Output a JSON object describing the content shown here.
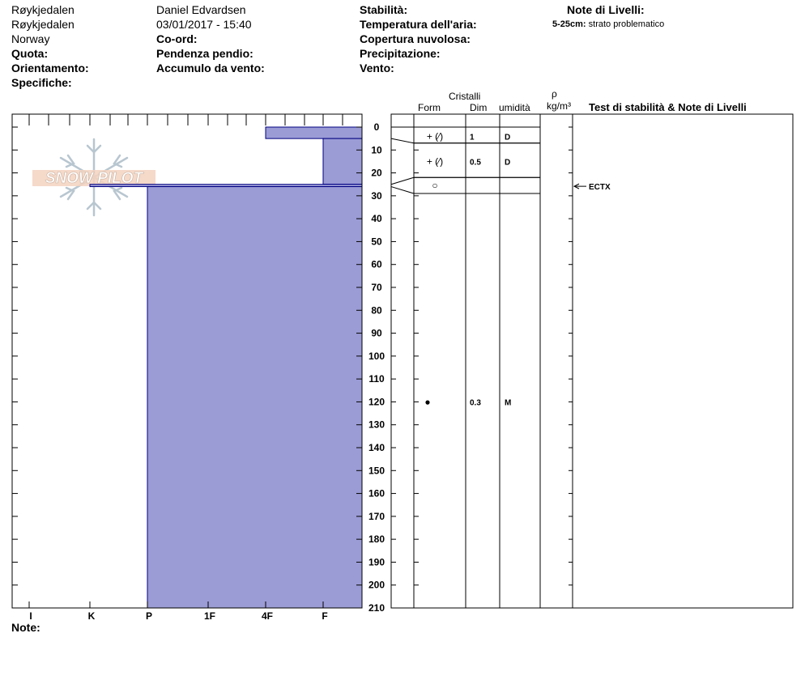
{
  "header": {
    "location1": "Røykjedalen",
    "location2": "Røykjedalen",
    "country": "Norway",
    "quota_label": "Quota:",
    "orientation_label": "Orientamento:",
    "specifics_label": "Specifiche:",
    "observer": "Daniel Edvardsen",
    "datetime": "03/01/2017 - 15:40",
    "coord_label": "Co-ord:",
    "slope_label": "Pendenza pendio:",
    "wind_loading_label": "Accumulo da vento:",
    "stability_label": "Stabilità:",
    "air_temp_label": "Temperatura dell'aria:",
    "cloud_label": "Copertura nuvolosa:",
    "precip_label": "Precipitazione:",
    "wind_label": "Vento:",
    "layer_notes_label": "Note di Livelli:",
    "layer_note_range": "5-25cm:",
    "layer_note_text": "strato problematico"
  },
  "logo_text": "SNOW PILOT",
  "notes_label": "Note:",
  "columns": {
    "crystals": "Cristalli",
    "form": "Form",
    "size": "Dim",
    "moisture": "umidità",
    "rho": "ρ",
    "density_unit": "kg/m³",
    "stability_tests": "Test di stabilità & Note di Livelli"
  },
  "colors": {
    "profile_fill": "#9b9bd6",
    "profile_edge": "#000080"
  },
  "chart_data": {
    "type": "area",
    "title": "",
    "ylabel": "",
    "xlabel": "",
    "depth_axis": {
      "min": 0,
      "max": 210,
      "step": 10,
      "direction": "top-down",
      "unit": "cm"
    },
    "hardness_categories": [
      "I",
      "K",
      "P",
      "1F",
      "4F",
      "F"
    ],
    "hardness_profile": [
      {
        "top": 0,
        "bottom": 5,
        "hardness": "4F"
      },
      {
        "top": 5,
        "bottom": 25,
        "hardness": "F"
      },
      {
        "top": 25,
        "bottom": 26,
        "hardness": "K"
      },
      {
        "top": 26,
        "bottom": 210,
        "hardness": "P"
      }
    ],
    "layers": [
      {
        "top": 0,
        "bottom": 7,
        "form": "+ (⁄)",
        "size": "1",
        "moisture": "D",
        "symbol_depth": 4
      },
      {
        "top": 7,
        "bottom": 22,
        "form": "+ (⁄)",
        "size": "0.5",
        "moisture": "D",
        "symbol_depth": 15
      },
      {
        "top": 22,
        "bottom": 29,
        "form": "○",
        "size": "",
        "moisture": "",
        "symbol_depth": 25.5
      }
    ],
    "point_observations": [
      {
        "depth": 120,
        "form": "●",
        "size": "0.3",
        "moisture": "M"
      }
    ],
    "stability_tests": [
      {
        "depth": 25.5,
        "label": "ECTX"
      }
    ]
  }
}
